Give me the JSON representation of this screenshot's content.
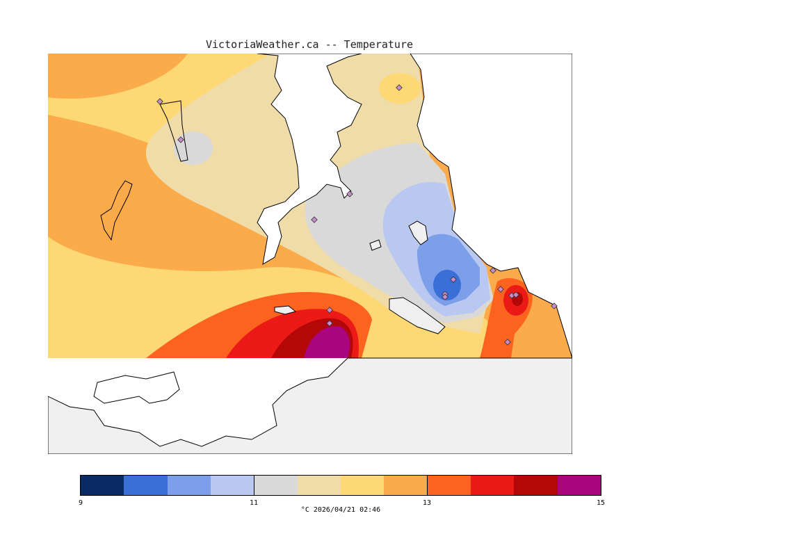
{
  "title": "VictoriaWeather.ca -- Temperature",
  "legend": {
    "colors": [
      "#0a2a66",
      "#3b6fd8",
      "#7d9ee8",
      "#b9c8f0",
      "#d9d9d9",
      "#f0dca8",
      "#fed875",
      "#fcab4a",
      "#fb631e",
      "#ec1a17",
      "#b40707",
      "#a8057e"
    ],
    "ticks": [
      "9",
      "11",
      "13",
      "15"
    ],
    "unit": "°C",
    "timestamp": "2026/04/21 02:46"
  },
  "map": {
    "land_color": "#f0f0f0",
    "water_color": "#ffffff",
    "station_count": 16
  }
}
